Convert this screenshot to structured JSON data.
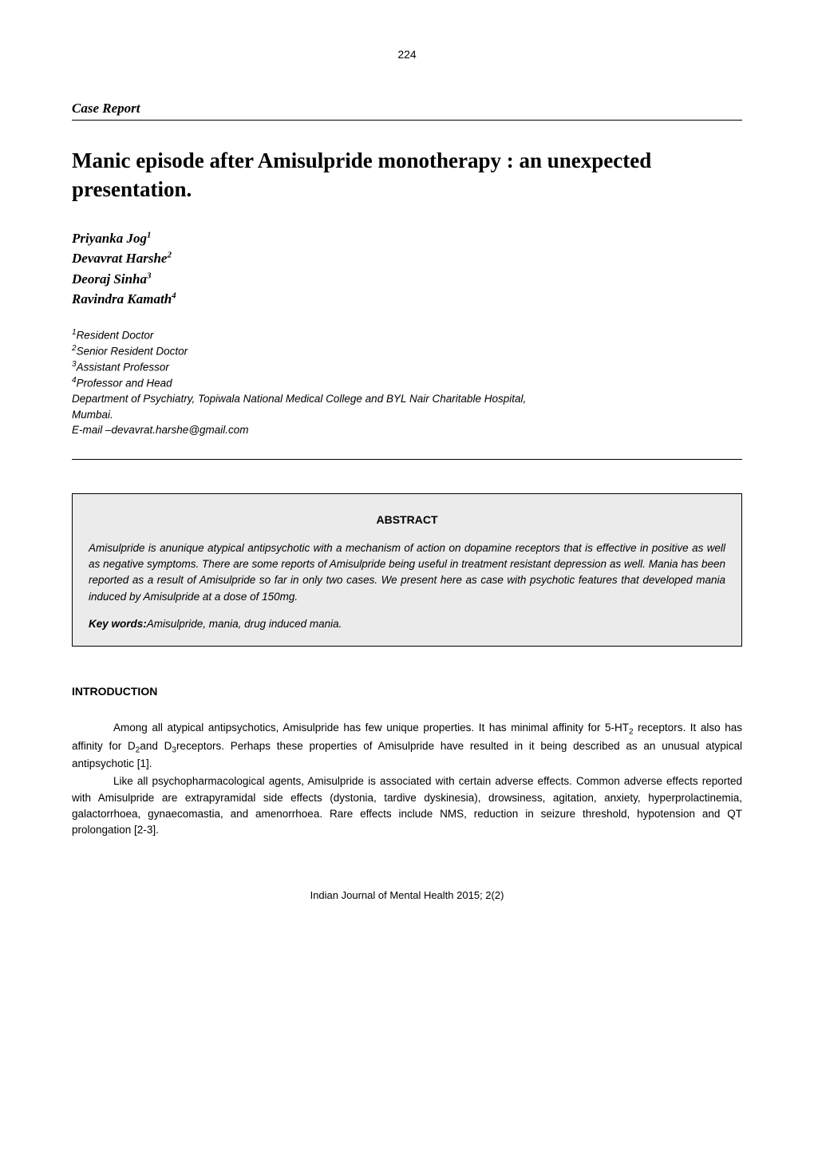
{
  "page_number": "224",
  "section_label": "Case Report",
  "title": "Manic episode after Amisulpride monotherapy : an unexpected presentation.",
  "authors": [
    {
      "name": "Priyanka Jog",
      "sup": "1"
    },
    {
      "name": "Devavrat Harshe",
      "sup": "2"
    },
    {
      "name": "Deoraj Sinha",
      "sup": "3"
    },
    {
      "name": "Ravindra Kamath",
      "sup": "4"
    }
  ],
  "affiliations": [
    {
      "sup": "1",
      "text": "Resident Doctor"
    },
    {
      "sup": "2",
      "text": "Senior Resident Doctor"
    },
    {
      "sup": "3",
      "text": "Assistant Professor"
    },
    {
      "sup": "4",
      "text": "Professor and Head"
    }
  ],
  "department_line1": "Department of Psychiatry, Topiwala National Medical College and BYL Nair Charitable Hospital,",
  "department_line2": "Mumbai.",
  "email_line": "E-mail –devavrat.harshe@gmail.com",
  "abstract": {
    "heading": "ABSTRACT",
    "text": "Amisulpride is anunique atypical antipsychotic with a mechanism of action on dopamine receptors that is effective in positive as well as negative symptoms. There are some reports of Amisulpride being useful in treatment resistant depression as well. Mania has been reported as a result of Amisulpride so far in only two cases. We present here as case with psychotic features that developed mania induced by Amisulpride at a dose of 150mg.",
    "keywords_label": "Key words:",
    "keywords_text": "Amisulpride, mania, drug induced mania."
  },
  "intro_heading": "INTRODUCTION",
  "body": {
    "p1_a": "Among all atypical antipsychotics, Amisulpride has few unique properties. It has minimal affinity for 5-HT",
    "p1_sub1": "2",
    "p1_b": " receptors. It also has affinity for D",
    "p1_sub2": "2",
    "p1_c": "and D",
    "p1_sub3": "3",
    "p1_d": "receptors. Perhaps these properties of Amisulpride have resulted in it being described as an unusual atypical antipsychotic [1].",
    "p2": "Like all psychopharmacological agents, Amisulpride is associated with certain adverse effects. Common adverse effects reported with Amisulpride are extrapyramidal side effects (dystonia, tardive dyskinesia), drowsiness, agitation, anxiety, hyperprolactinemia, galactorrhoea, gynaecomastia, and amenorrhoea. Rare effects include NMS, reduction in seizure threshold, hypotension and QT prolongation [2-3]."
  },
  "footer": "Indian Journal of Mental Health 2015; 2(2)",
  "colors": {
    "text": "#000000",
    "background": "#ffffff",
    "abstract_bg": "#ebebeb",
    "border": "#000000"
  },
  "typography": {
    "body_font": "Verdana",
    "heading_font": "Georgia",
    "title_fontsize_pt": 20,
    "author_fontsize_pt": 13,
    "body_fontsize_pt": 10,
    "abstract_fontsize_pt": 10
  }
}
